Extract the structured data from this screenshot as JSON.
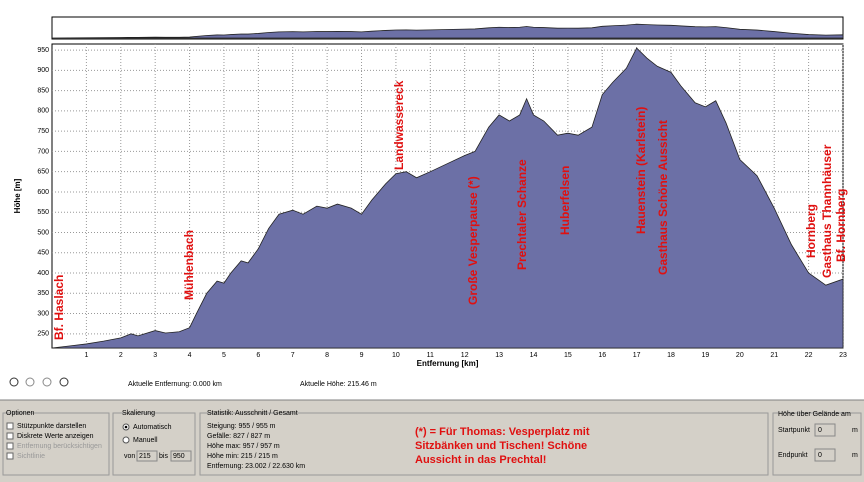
{
  "chart_data": {
    "type": "area",
    "xlabel": "Entfernung [km]",
    "ylabel": "Höhe [m]",
    "color": "#6c70a6",
    "grid": true,
    "x": [
      0,
      0.5,
      1,
      1.5,
      2,
      2.3,
      2.5,
      3,
      3.3,
      3.7,
      4,
      4.2,
      4.5,
      4.8,
      5,
      5.2,
      5.5,
      5.7,
      6,
      6.3,
      6.6,
      7,
      7.3,
      7.7,
      8,
      8.3,
      8.7,
      9,
      9.3,
      9.7,
      10,
      10.3,
      10.6,
      11,
      11.5,
      12,
      12.3,
      12.7,
      13,
      13.3,
      13.6,
      13.8,
      14,
      14.3,
      14.7,
      15,
      15.3,
      15.7,
      16,
      16.3,
      16.7,
      17,
      17.3,
      17.6,
      18,
      18.3,
      18.7,
      19,
      19.3,
      19.6,
      20,
      20.5,
      21,
      21.5,
      22,
      22.5,
      23
    ],
    "values": [
      215,
      220,
      225,
      232,
      240,
      250,
      245,
      258,
      252,
      255,
      265,
      300,
      350,
      380,
      375,
      400,
      430,
      425,
      460,
      510,
      545,
      555,
      545,
      565,
      560,
      570,
      560,
      545,
      580,
      620,
      645,
      650,
      635,
      650,
      670,
      690,
      700,
      760,
      790,
      775,
      790,
      830,
      790,
      775,
      740,
      745,
      740,
      760,
      840,
      870,
      905,
      955,
      930,
      910,
      895,
      860,
      820,
      810,
      825,
      770,
      680,
      640,
      560,
      470,
      400,
      370,
      385
    ],
    "xlim": [
      0,
      23
    ],
    "ylim": [
      215,
      965
    ],
    "xticks": [
      1,
      2,
      3,
      4,
      5,
      6,
      7,
      8,
      9,
      10,
      11,
      12,
      13,
      14,
      15,
      16,
      17,
      18,
      19,
      20,
      21,
      22,
      23
    ],
    "yticks": [
      250,
      300,
      350,
      400,
      450,
      500,
      550,
      600,
      650,
      700,
      750,
      800,
      850,
      900,
      950
    ],
    "annotations": [
      "Bf. Haslach",
      "Mühlenbach",
      "Landwassereck",
      "Große Vesperpause (*)",
      "Prechtaler Schanze",
      "Huberfelsen",
      "Hauenstein (Karlstein)",
      "Gasthaus Schöne Aussicht",
      "Hornberg",
      "Gasthaus Thannhäuser",
      "Bf. Hornberg"
    ]
  },
  "status": {
    "distance": "Aktuelle Entfernung: 0.000 km",
    "height": "Aktuelle Höhe: 215.46 m"
  },
  "options": {
    "title": "Optionen",
    "items": [
      "Stützpunkte darstellen",
      "Diskrete Werte anzeigen",
      "Entfernung berücksichtigen",
      "Sichtlinie"
    ]
  },
  "scaling": {
    "title": "Skalierung",
    "auto": "Automatisch",
    "manual": "Manuell",
    "from": "von",
    "from_value": "215",
    "to": "bis",
    "to_value": "950"
  },
  "stats": {
    "title": "Statistik: Ausschnitt / Gesamt",
    "lines": [
      "Steigung: 955 / 955 m",
      "Gefälle: 827 / 827 m",
      "Höhe max: 957 / 957 m",
      "Höhe min: 215 / 215 m",
      "Entfernung: 23.002 / 22.630 km"
    ]
  },
  "note": [
    "(*) = Für Thomas: Vesperplatz mit",
    "Sitzbänken und Tischen! Schöne",
    "Aussicht in das Prechtal!"
  ],
  "terrain": {
    "title": "Höhe über Gelände am",
    "start": "Startpunkt",
    "start_value": "0",
    "end": "Endpunkt",
    "end_value": "0",
    "unit": "m"
  }
}
